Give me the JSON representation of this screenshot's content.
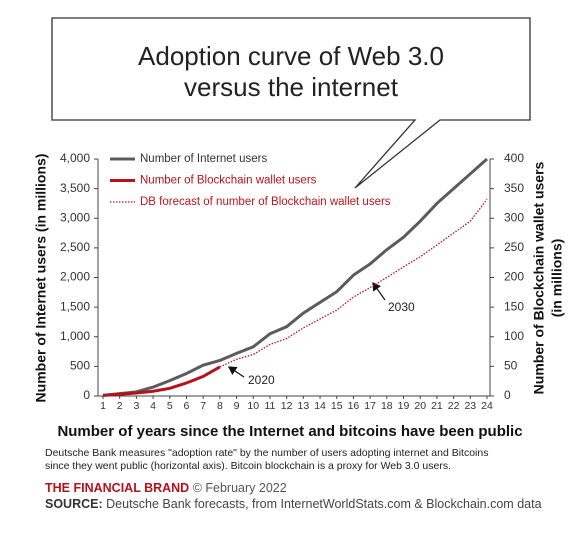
{
  "chart_data": {
    "type": "line",
    "title": [
      "Adoption curve of Web 3.0",
      "versus the internet"
    ],
    "x": [
      1,
      2,
      3,
      4,
      5,
      6,
      7,
      8,
      9,
      10,
      11,
      12,
      13,
      14,
      15,
      16,
      17,
      18,
      19,
      20,
      21,
      22,
      23,
      24
    ],
    "xlim": [
      1,
      24
    ],
    "xticks": [
      1,
      2,
      3,
      4,
      5,
      6,
      7,
      8,
      9,
      10,
      11,
      12,
      13,
      14,
      15,
      16,
      17,
      18,
      19,
      20,
      21,
      22,
      23,
      24
    ],
    "ylim": [
      0,
      4000
    ],
    "yticks": [
      0,
      500,
      {
        "value": 1000,
        "label": "1,000"
      },
      {
        "value": 1500,
        "label": "1,500"
      },
      {
        "value": 2000,
        "label": "2,000"
      },
      {
        "value": 2500,
        "label": "2,500"
      },
      {
        "value": 3000,
        "label": "3,000"
      },
      {
        "value": 3500,
        "label": "3,500"
      },
      {
        "value": 4000,
        "label": "4,000"
      }
    ],
    "y2lim": [
      0,
      400
    ],
    "y2ticks": [
      0,
      50,
      100,
      150,
      200,
      250,
      300,
      350,
      400
    ],
    "x_label": "Number of years since the Internet and bitcoins have been public",
    "y_label": "Number of Internet users (in millions)",
    "y2_label": [
      "Number of Blockchain wallet users",
      "(in millions)"
    ],
    "legend": "top-left",
    "series": [
      {
        "name": "Number of Internet users",
        "color": "#5b5b5b",
        "style": "solid",
        "values": [
          10,
          40,
          70,
          150,
          260,
          380,
          520,
          600,
          720,
          830,
          1050,
          1170,
          1400,
          1580,
          1760,
          2040,
          2230,
          2470,
          2680,
          2950,
          3250,
          3500,
          3750,
          4000
        ]
      },
      {
        "name": "Number of Blockchain wallet users",
        "color": "#b5121b",
        "style": "solid",
        "axis": "y2",
        "values": [
          1,
          3,
          5,
          8,
          13,
          22,
          33,
          49,
          null,
          null,
          null,
          null,
          null,
          null,
          null,
          null,
          null,
          null,
          null,
          null,
          null,
          null,
          null,
          null
        ]
      },
      {
        "name": "DB forecast of number of Blockchain wallet users",
        "color": "#c0141c",
        "style": "dotted",
        "axis": "y2",
        "values": [
          null,
          null,
          null,
          null,
          null,
          null,
          null,
          49,
          62,
          70,
          87,
          97,
          115,
          130,
          145,
          167,
          183,
          200,
          218,
          235,
          255,
          275,
          295,
          332
        ]
      }
    ],
    "annotations": [
      "2020",
      "2030"
    ],
    "footnote": [
      "Deutsche Bank measures \"adoption rate\" by the number of users adopting internet and Bitcoins",
      "since they went public (horizontal axis). Bitcoin blockchain is a proxy for Web 3.0 users."
    ],
    "brand": "THE FINANCIAL BRAND",
    "brand_date": "© February 2022",
    "source_label": "SOURCE:",
    "source": "Deutsche Bank forecasts, from InternetWorldStats.com & Blockchain.com data"
  }
}
